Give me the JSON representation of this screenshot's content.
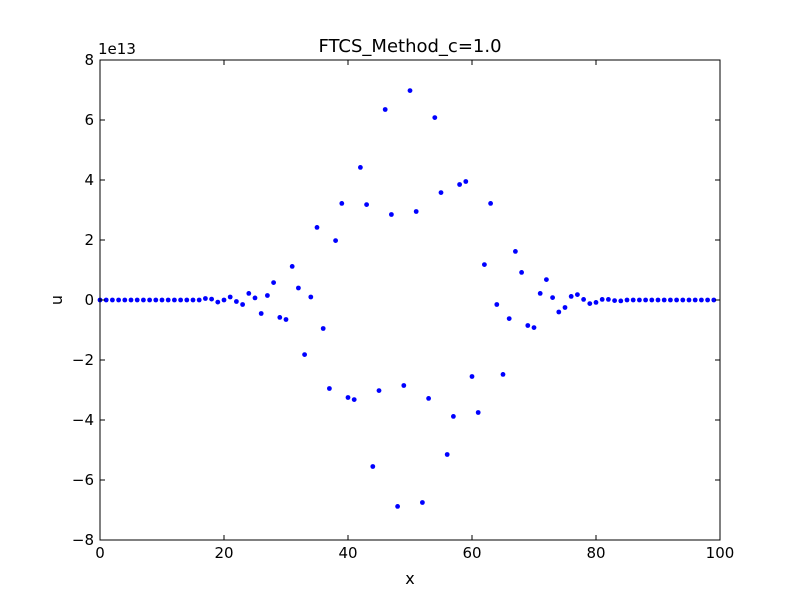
{
  "chart_data": {
    "type": "scatter",
    "title": "FTCS_Method_c=1.0",
    "xlabel": "x",
    "ylabel": "u",
    "y_offset_text": "1e13",
    "xlim": [
      0,
      100
    ],
    "ylim": [
      -8,
      8
    ],
    "xticks": [
      0,
      20,
      40,
      60,
      80,
      100
    ],
    "yticks": [
      -8,
      -6,
      -4,
      -2,
      0,
      2,
      4,
      6,
      8
    ],
    "grid": false,
    "marker_color": "#0000ff",
    "series": [
      {
        "x": [
          0,
          1,
          2,
          3,
          4,
          5,
          6,
          7,
          8,
          9,
          10,
          11,
          12,
          13,
          14,
          15,
          16,
          17,
          18,
          19,
          20,
          21,
          22,
          23,
          24,
          25,
          26,
          27,
          28,
          29,
          30,
          31,
          32,
          33,
          34,
          35,
          36,
          37,
          38,
          39,
          40,
          41,
          42,
          43,
          44,
          45,
          46,
          47,
          48,
          49,
          50,
          51,
          52,
          53,
          54,
          55,
          56,
          57,
          58,
          59,
          60,
          61,
          62,
          63,
          64,
          65,
          66,
          67,
          68,
          69,
          70,
          71,
          72,
          73,
          74,
          75,
          76,
          77,
          78,
          79,
          80,
          81,
          82,
          83,
          84,
          85,
          86,
          87,
          88,
          89,
          90,
          91,
          92,
          93,
          94,
          95,
          96,
          97,
          98,
          99
        ],
        "y": [
          0,
          0,
          0,
          0,
          0,
          0,
          0,
          0,
          0,
          0,
          0,
          0,
          0,
          0,
          0,
          0,
          0,
          0.05,
          0.03,
          -0.07,
          0,
          0.1,
          -0.05,
          -0.15,
          0.22,
          0.07,
          -0.45,
          0.15,
          0.58,
          -0.58,
          -0.65,
          1.12,
          0.4,
          -1.82,
          0.1,
          2.42,
          -0.95,
          -2.95,
          1.98,
          3.22,
          -3.25,
          -3.32,
          4.42,
          3.18,
          -5.55,
          -3.02,
          6.35,
          2.85,
          -6.88,
          -2.85,
          6.98,
          2.95,
          -6.75,
          -3.28,
          6.08,
          3.58,
          -5.15,
          -3.88,
          3.85,
          3.95,
          -2.55,
          -3.75,
          1.18,
          3.22,
          -0.15,
          -2.48,
          -0.62,
          1.62,
          0.92,
          -0.85,
          -0.92,
          0.22,
          0.68,
          0.08,
          -0.4,
          -0.25,
          0.12,
          0.18,
          0.02,
          -0.12,
          -0.08,
          0.02,
          0.02,
          -0.02,
          -0.03,
          0,
          0,
          0,
          0,
          0,
          0,
          0,
          0,
          0,
          0,
          0,
          0,
          0,
          0,
          0
        ]
      }
    ]
  }
}
